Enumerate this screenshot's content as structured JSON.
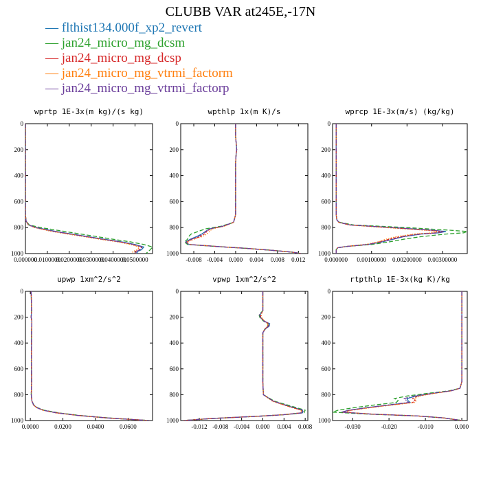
{
  "title": "CLUBB VAR at245E,-17N",
  "legend": [
    {
      "label": "flthist134.000f_xp2_revert",
      "color": "#1f77b4",
      "dash": "solid"
    },
    {
      "label": "jan24_micro_mg_dcsm",
      "color": "#2ca02c",
      "dash": "long"
    },
    {
      "label": "jan24_micro_mg_dcsp",
      "color": "#d62728",
      "dash": "short"
    },
    {
      "label": "jan24_micro_mg_vtrmi_factorm",
      "color": "#ff7f0e",
      "dash": "dot"
    },
    {
      "label": "jan24_micro_mg_vtrmi_factorp",
      "color": "#6a3d9a",
      "dash": "dashdot"
    }
  ],
  "chart_data": [
    {
      "type": "line",
      "title": "wprtp  1E-3x(m kg)/(s kg)",
      "xlim": [
        0,
        0.058
      ],
      "ylim": [
        1000,
        0
      ],
      "xticks": [
        0.0,
        0.01,
        0.02,
        0.03,
        0.04,
        0.05
      ],
      "xtick_labels": [
        "0.000000",
        "0.0100000",
        "0.0200000",
        "0.0300000",
        "0.0400000",
        "0.0500000"
      ],
      "yticks": [
        0,
        200,
        400,
        600,
        800,
        1000
      ],
      "y": [
        0,
        200,
        400,
        600,
        700,
        750,
        780,
        800,
        830,
        860,
        890,
        910,
        930,
        950,
        970,
        985,
        1000
      ],
      "series": [
        {
          "name": "flthist134.000f_xp2_revert",
          "values": [
            0,
            0,
            0,
            0,
            0,
            0.0003,
            0.0015,
            0.005,
            0.014,
            0.025,
            0.036,
            0.044,
            0.05,
            0.054,
            0.053,
            0.051,
            0.051
          ]
        },
        {
          "name": "jan24_micro_mg_dcsm",
          "values": [
            0,
            0,
            0,
            0,
            0,
            0.0003,
            0.0018,
            0.007,
            0.018,
            0.029,
            0.04,
            0.048,
            0.054,
            0.058,
            0.057,
            0.056,
            0.055
          ]
        },
        {
          "name": "jan24_micro_mg_dcsp",
          "values": [
            0,
            0,
            0,
            0,
            0,
            0.0003,
            0.0014,
            0.0045,
            0.013,
            0.024,
            0.035,
            0.043,
            0.049,
            0.053,
            0.052,
            0.05,
            0.05
          ]
        },
        {
          "name": "jan24_micro_mg_vtrmi_factorm",
          "values": [
            0,
            0,
            0,
            0,
            0,
            0.0003,
            0.0013,
            0.0042,
            0.012,
            0.023,
            0.034,
            0.042,
            0.048,
            0.052,
            0.051,
            0.049,
            0.049
          ]
        },
        {
          "name": "jan24_micro_mg_vtrmi_factorp",
          "values": [
            0,
            0,
            0,
            0,
            0,
            0.0003,
            0.0015,
            0.0048,
            0.0135,
            0.0245,
            0.0355,
            0.0435,
            0.0495,
            0.0535,
            0.0525,
            0.0505,
            0.0505
          ]
        }
      ]
    },
    {
      "type": "line",
      "title": "wpthlp  1x(m K)/s",
      "xlim": [
        -0.0105,
        0.0138
      ],
      "ylim": [
        1000,
        0
      ],
      "xticks": [
        -0.008,
        -0.004,
        0.0,
        0.004,
        0.008,
        0.012
      ],
      "xtick_labels": [
        "-0.008",
        "-0.004",
        "0.000",
        "0.004",
        "0.008",
        "0.012"
      ],
      "yticks": [
        0,
        200,
        400,
        600,
        800,
        1000
      ],
      "y": [
        0,
        100,
        150,
        200,
        230,
        300,
        500,
        700,
        760,
        790,
        810,
        830,
        850,
        870,
        890,
        910,
        930,
        950,
        960,
        975,
        990,
        1000
      ],
      "series": [
        {
          "name": "flthist134.000f_xp2_revert",
          "values": [
            0,
            0,
            0.0001,
            0.0002,
            0.0001,
            0.0,
            0.0,
            0.0,
            -0.0004,
            -0.0025,
            -0.005,
            -0.0058,
            -0.0065,
            -0.0075,
            -0.0087,
            -0.0095,
            -0.009,
            -0.002,
            0.002,
            0.007,
            0.011,
            0.0125
          ]
        },
        {
          "name": "jan24_micro_mg_dcsm",
          "values": [
            0,
            0,
            0.0001,
            0.0002,
            0.0001,
            0.0,
            0.0,
            0.0,
            -0.0004,
            -0.0028,
            -0.0058,
            -0.0072,
            -0.0085,
            -0.009,
            -0.0092,
            -0.0098,
            -0.0092,
            -0.002,
            0.002,
            0.007,
            0.011,
            0.0125
          ]
        },
        {
          "name": "jan24_micro_mg_dcsp",
          "values": [
            0,
            0,
            0.0001,
            0.0002,
            0.0001,
            0.0,
            0.0,
            0.0,
            -0.0004,
            -0.0024,
            -0.0048,
            -0.0055,
            -0.006,
            -0.0068,
            -0.0082,
            -0.0094,
            -0.0089,
            -0.002,
            0.002,
            0.007,
            0.011,
            0.0125
          ]
        },
        {
          "name": "jan24_micro_mg_vtrmi_factorm",
          "values": [
            0,
            0,
            0.0001,
            0.0002,
            0.0001,
            0.0,
            0.0,
            0.0,
            -0.0004,
            -0.0022,
            -0.0045,
            -0.005,
            -0.0055,
            -0.0064,
            -0.008,
            -0.0093,
            -0.0088,
            -0.002,
            0.002,
            0.007,
            0.011,
            0.0125
          ]
        },
        {
          "name": "jan24_micro_mg_vtrmi_factorp",
          "values": [
            0,
            0,
            0.0001,
            0.0002,
            0.0001,
            0.0,
            0.0,
            0.0,
            -0.0004,
            -0.0025,
            -0.005,
            -0.0057,
            -0.0063,
            -0.0072,
            -0.0085,
            -0.0095,
            -0.009,
            -0.002,
            0.002,
            0.007,
            0.011,
            0.0125
          ]
        }
      ]
    },
    {
      "type": "line",
      "title": "wprcp  1E-3x(m/s) (kg/kg)",
      "xlim": [
        -0.0001,
        0.0037
      ],
      "ylim": [
        1000,
        0
      ],
      "xticks": [
        0.0,
        0.001,
        0.002,
        0.003
      ],
      "xtick_labels": [
        "0.000000",
        "0.00100000",
        "0.00200000",
        "0.00300000"
      ],
      "yticks": [
        0,
        200,
        400,
        600,
        800,
        1000
      ],
      "y": [
        0,
        200,
        400,
        600,
        700,
        740,
        760,
        780,
        800,
        820,
        830,
        840,
        850,
        870,
        890,
        910,
        930,
        945,
        955,
        970,
        1000
      ],
      "series": [
        {
          "name": "flthist134.000f_xp2_revert",
          "values": [
            0,
            0,
            0,
            0,
            0,
            2e-05,
            8e-05,
            0.0004,
            0.0016,
            0.0027,
            0.0031,
            0.0029,
            0.0024,
            0.0019,
            0.0016,
            0.0013,
            0.0009,
            0.0003,
            5e-05,
            0,
            0
          ]
        },
        {
          "name": "jan24_micro_mg_dcsm",
          "values": [
            0,
            0,
            0,
            0,
            0,
            2e-05,
            0.0001,
            0.0005,
            0.002,
            0.0032,
            0.0037,
            0.0036,
            0.0031,
            0.0024,
            0.0019,
            0.0015,
            0.001,
            0.0003,
            5e-05,
            0,
            0
          ]
        },
        {
          "name": "jan24_micro_mg_dcsp",
          "values": [
            0,
            0,
            0,
            0,
            0,
            2e-05,
            8e-05,
            0.0004,
            0.0015,
            0.0026,
            0.003,
            0.0028,
            0.0023,
            0.0018,
            0.0015,
            0.0012,
            0.0009,
            0.0003,
            5e-05,
            0,
            0
          ]
        },
        {
          "name": "jan24_micro_mg_vtrmi_factorm",
          "values": [
            0,
            0,
            0,
            0,
            0,
            2e-05,
            7e-05,
            0.00035,
            0.0014,
            0.0025,
            0.0029,
            0.0027,
            0.0022,
            0.0017,
            0.0014,
            0.0012,
            0.0008,
            0.0003,
            5e-05,
            0,
            0
          ]
        },
        {
          "name": "jan24_micro_mg_vtrmi_factorp",
          "values": [
            0,
            0,
            0,
            0,
            0,
            2e-05,
            8e-05,
            0.0004,
            0.0016,
            0.0027,
            0.00305,
            0.0029,
            0.0024,
            0.0019,
            0.0016,
            0.0013,
            0.0009,
            0.0003,
            5e-05,
            0,
            0
          ]
        }
      ]
    },
    {
      "type": "line",
      "title": "upwp  1xm^2/s^2",
      "xlim": [
        -0.003,
        0.075
      ],
      "ylim": [
        1000,
        0
      ],
      "xticks": [
        0.0,
        0.02,
        0.04,
        0.06
      ],
      "xtick_labels": [
        "0.0000",
        "0.0200",
        "0.0400",
        "0.0600"
      ],
      "yticks": [
        0,
        200,
        400,
        600,
        800,
        1000
      ],
      "y": [
        0,
        100,
        150,
        200,
        230,
        300,
        500,
        700,
        800,
        850,
        880,
        900,
        920,
        940,
        960,
        980,
        1000
      ],
      "series": [
        {
          "name": "flthist134.000f_xp2_revert",
          "values": [
            0.0005,
            0.0007,
            0.0008,
            0.0005,
            0.0009,
            0.0008,
            0.0007,
            0.0008,
            0.0006,
            0.001,
            0.002,
            0.004,
            0.008,
            0.016,
            0.029,
            0.047,
            0.073
          ]
        },
        {
          "name": "jan24_micro_mg_dcsm",
          "values": [
            0.0005,
            0.0007,
            0.0008,
            0.0005,
            0.0009,
            0.0008,
            0.0007,
            0.0008,
            0.0006,
            0.001,
            0.0022,
            0.0043,
            0.0085,
            0.017,
            0.03,
            0.048,
            0.073
          ]
        },
        {
          "name": "jan24_micro_mg_dcsp",
          "values": [
            0.0005,
            0.0007,
            0.0008,
            0.0005,
            0.0009,
            0.0008,
            0.0007,
            0.0008,
            0.0006,
            0.001,
            0.002,
            0.0039,
            0.0078,
            0.0157,
            0.0288,
            0.0468,
            0.073
          ]
        },
        {
          "name": "jan24_micro_mg_vtrmi_factorm",
          "values": [
            0.0005,
            0.0007,
            0.0008,
            0.0005,
            0.0009,
            0.0008,
            0.0007,
            0.0008,
            0.0006,
            0.001,
            0.0019,
            0.0038,
            0.0077,
            0.0155,
            0.0286,
            0.0466,
            0.073
          ]
        },
        {
          "name": "jan24_micro_mg_vtrmi_factorp",
          "values": [
            0.0005,
            0.0007,
            0.0008,
            0.0005,
            0.0009,
            0.0008,
            0.0007,
            0.0008,
            0.0006,
            0.001,
            0.002,
            0.004,
            0.0079,
            0.0159,
            0.029,
            0.047,
            0.073
          ]
        }
      ]
    },
    {
      "type": "line",
      "title": "vpwp  1xm^2/s^2",
      "xlim": [
        -0.0155,
        0.0085
      ],
      "ylim": [
        1000,
        0
      ],
      "xticks": [
        -0.012,
        -0.008,
        -0.004,
        0.0,
        0.004,
        0.008
      ],
      "xtick_labels": [
        "-0.012",
        "-0.008",
        "-0.004",
        "0.000",
        "0.004",
        "0.008"
      ],
      "yticks": [
        0,
        200,
        400,
        600,
        800,
        1000
      ],
      "y": [
        0,
        100,
        150,
        180,
        200,
        230,
        250,
        270,
        290,
        320,
        500,
        700,
        800,
        850,
        890,
        920,
        940,
        955,
        965,
        975,
        985,
        1000
      ],
      "series": [
        {
          "name": "flthist134.000f_xp2_revert",
          "values": [
            0,
            0,
            0,
            -0.0005,
            -0.0005,
            0.0002,
            0.0013,
            0.0012,
            0.0005,
            0.0,
            0.0,
            0.0,
            0.0001,
            0.002,
            0.005,
            0.0075,
            0.0075,
            0.004,
            0.0,
            -0.005,
            -0.01,
            -0.015
          ]
        },
        {
          "name": "jan24_micro_mg_dcsm",
          "values": [
            0,
            0,
            0,
            -0.0007,
            -0.0006,
            0.0001,
            0.001,
            0.0009,
            0.0004,
            0.0,
            0.0,
            0.0,
            0.0001,
            0.0022,
            0.0055,
            0.008,
            0.0078,
            0.0042,
            0.0,
            -0.005,
            -0.01,
            -0.015
          ]
        },
        {
          "name": "jan24_micro_mg_dcsp",
          "values": [
            0,
            0,
            0,
            -0.0004,
            -0.0004,
            0.0003,
            0.0011,
            0.001,
            0.0004,
            0.0,
            0.0,
            0.0,
            0.0001,
            0.0019,
            0.0048,
            0.0073,
            0.0074,
            0.0039,
            0.0,
            -0.005,
            -0.01,
            -0.015
          ]
        },
        {
          "name": "jan24_micro_mg_vtrmi_factorm",
          "values": [
            0,
            0,
            0,
            -0.0003,
            -0.0003,
            0.0003,
            0.0009,
            0.0009,
            0.0004,
            0.0,
            0.0,
            0.0,
            0.0001,
            0.0018,
            0.0047,
            0.0072,
            0.0073,
            0.0039,
            0.0,
            -0.005,
            -0.01,
            -0.015
          ]
        },
        {
          "name": "jan24_micro_mg_vtrmi_factorp",
          "values": [
            0,
            0,
            0,
            -0.0006,
            -0.0005,
            0.0002,
            0.0012,
            0.0011,
            0.0005,
            0.0,
            0.0,
            0.0,
            0.0001,
            0.002,
            0.005,
            0.0076,
            0.0076,
            0.004,
            0.0,
            -0.005,
            -0.01,
            -0.015
          ]
        }
      ]
    },
    {
      "type": "line",
      "title": "rtpthlp  1E-3x(kg K)/kg",
      "xlim": [
        -0.0355,
        0.0015
      ],
      "ylim": [
        1000,
        0
      ],
      "xticks": [
        -0.03,
        -0.02,
        -0.01,
        0.0
      ],
      "xtick_labels": [
        "-0.030",
        "-0.020",
        "-0.010",
        "0.000"
      ],
      "yticks": [
        0,
        200,
        400,
        600,
        800,
        1000
      ],
      "y": [
        0,
        200,
        400,
        600,
        700,
        750,
        770,
        790,
        810,
        830,
        845,
        860,
        880,
        900,
        920,
        935,
        950,
        965,
        980,
        1000
      ],
      "series": [
        {
          "name": "flthist134.000f_xp2_revert",
          "values": [
            0,
            0,
            0,
            0,
            0,
            -0.0005,
            -0.003,
            -0.008,
            -0.0125,
            -0.015,
            -0.0148,
            -0.0142,
            -0.02,
            -0.026,
            -0.031,
            -0.033,
            -0.025,
            -0.012,
            -0.005,
            0
          ]
        },
        {
          "name": "jan24_micro_mg_dcsm",
          "values": [
            0,
            0,
            0,
            0,
            0,
            -0.0005,
            -0.0035,
            -0.0095,
            -0.015,
            -0.0185,
            -0.0175,
            -0.018,
            -0.024,
            -0.0295,
            -0.034,
            -0.0355,
            -0.026,
            -0.012,
            -0.005,
            0
          ]
        },
        {
          "name": "jan24_micro_mg_dcsp",
          "values": [
            0,
            0,
            0,
            0,
            0,
            -0.0005,
            -0.003,
            -0.0078,
            -0.012,
            -0.0135,
            -0.0128,
            -0.0135,
            -0.0195,
            -0.0255,
            -0.0305,
            -0.0328,
            -0.0248,
            -0.012,
            -0.005,
            0
          ]
        },
        {
          "name": "jan24_micro_mg_vtrmi_factorm",
          "values": [
            0,
            0,
            0,
            0,
            0,
            -0.0005,
            -0.0028,
            -0.0075,
            -0.0115,
            -0.013,
            -0.0125,
            -0.013,
            -0.019,
            -0.025,
            -0.0302,
            -0.0325,
            -0.0246,
            -0.012,
            -0.005,
            0
          ]
        },
        {
          "name": "jan24_micro_mg_vtrmi_factorp",
          "values": [
            0,
            0,
            0,
            0,
            0,
            -0.0005,
            -0.003,
            -0.0082,
            -0.013,
            -0.0158,
            -0.0152,
            -0.0146,
            -0.0202,
            -0.026,
            -0.031,
            -0.033,
            -0.025,
            -0.012,
            -0.005,
            0
          ]
        }
      ]
    }
  ]
}
